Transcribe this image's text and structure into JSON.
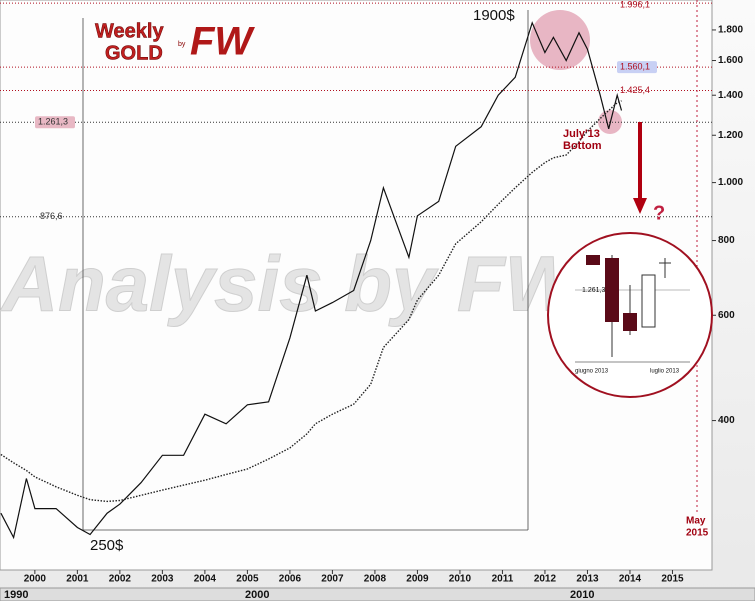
{
  "chart_data": {
    "type": "line",
    "title": "Weekly",
    "subtitle": "GOLD",
    "logo_by": "by",
    "logo_mark": "FW",
    "watermark": "Analysis by FW",
    "x": [
      1999.2,
      1999.5,
      1999.8,
      2000.0,
      2000.5,
      2001.0,
      2001.3,
      2001.7,
      2002.0,
      2002.5,
      2003.0,
      2003.5,
      2004.0,
      2004.5,
      2005.0,
      2005.5,
      2006.0,
      2006.4,
      2006.6,
      2007.0,
      2007.5,
      2007.9,
      2008.2,
      2008.8,
      2009.0,
      2009.5,
      2009.9,
      2010.5,
      2010.9,
      2011.3,
      2011.7,
      2012.0,
      2012.2,
      2012.5,
      2012.8,
      2013.0,
      2013.3,
      2013.5,
      2013.7,
      2013.8
    ],
    "series": [
      {
        "color": "#111111",
        "values": [
          280,
          255,
          320,
          285,
          285,
          265,
          258,
          280,
          290,
          315,
          350,
          350,
          410,
          395,
          425,
          430,
          550,
          700,
          610,
          630,
          660,
          800,
          980,
          750,
          880,
          930,
          1150,
          1240,
          1400,
          1500,
          1850,
          1650,
          1750,
          1600,
          1780,
          1670,
          1400,
          1230,
          1400,
          1320
        ]
      },
      {
        "color": "#222222",
        "values": [
          351,
          340,
          330,
          322,
          310,
          300,
          295,
          293,
          294,
          300,
          306,
          312,
          318,
          325,
          332,
          345,
          360,
          380,
          395,
          410,
          426,
          460,
          530,
          590,
          636,
          700,
          790,
          860,
          920,
          980,
          1040,
          1080,
          1100,
          1112,
          1170,
          1220,
          1280,
          1320,
          1360,
          1370
        ]
      }
    ],
    "xlim": [
      1999.18,
      2015.93
    ],
    "xticks": [
      2000,
      2001,
      2002,
      2003,
      2004,
      2005,
      2006,
      2007,
      2008,
      2009,
      2010,
      2011,
      2012,
      2013,
      2014,
      2015
    ],
    "ylim": [
      225,
      2020
    ],
    "log_scale": true,
    "yticks": [
      400,
      600,
      800,
      {
        "value": 1000,
        "label": "1.000"
      },
      {
        "value": 1200,
        "label": "1.200"
      },
      {
        "value": 1400,
        "label": "1.400"
      },
      {
        "value": 1600,
        "label": "1.600"
      },
      {
        "value": 1800,
        "label": "1.800"
      }
    ],
    "levels": [
      {
        "value": 1261.3,
        "label": "1.261,3",
        "color": "#333333"
      },
      {
        "value": 876.6,
        "label": "876,6",
        "color": "#333333"
      },
      {
        "value": 1560.1,
        "label": "1.560,1",
        "color": "#b01020"
      },
      {
        "value": 1425.4,
        "label": "1.425,4",
        "color": "#b01020"
      },
      {
        "value": 1996.1,
        "label": "1.996,1",
        "color": "#b01020"
      }
    ],
    "annotations": [
      "1900$",
      "250$",
      "July'13",
      "Bottom",
      "?",
      "May",
      "2015"
    ],
    "decade_labels": [
      "1990",
      "2000",
      "2010"
    ],
    "inset": {
      "level": "1.261,3",
      "labels": [
        "giugno 2013",
        "luglio 2013"
      ]
    }
  }
}
